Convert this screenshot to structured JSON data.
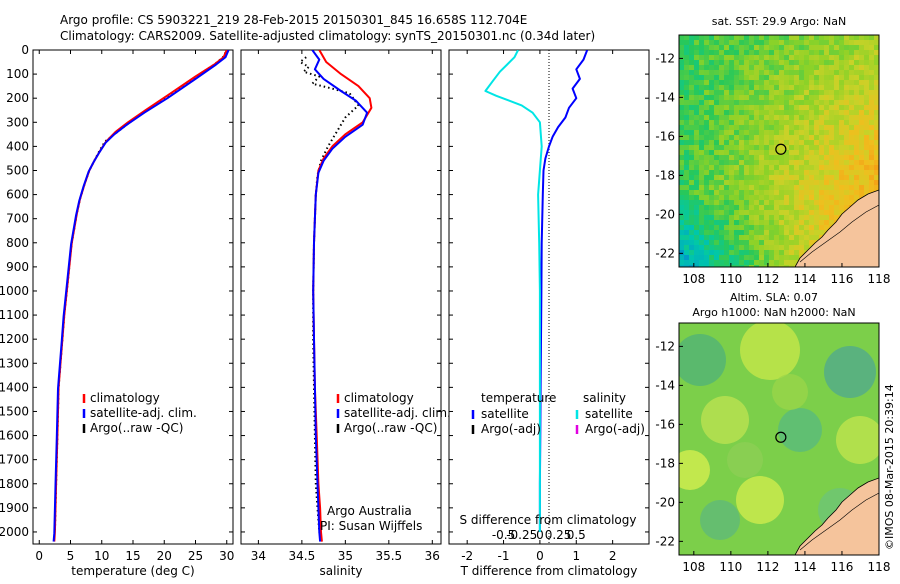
{
  "header": {
    "line1": "Argo profile: CS 5903221_219 28-Feb-2015 20150301_845 16.658S 112.704E",
    "line2": "Climatology: CARS2009. Satellite-adjusted climatology: synTS_20150301.nc (0.34d later)"
  },
  "footer_stamp": "©IMOS 08-Mar-2015 20:39:14",
  "chart_data": [
    {
      "type": "line",
      "name": "temperature-profile",
      "xlabel": "temperature (deg C)",
      "ylabel": "",
      "xlim": [
        -1,
        31
      ],
      "ylim": [
        2050,
        0
      ],
      "xticks": [
        0,
        5,
        10,
        15,
        20,
        25,
        30
      ],
      "yticks": [
        0,
        100,
        200,
        300,
        400,
        500,
        600,
        700,
        800,
        900,
        1000,
        1100,
        1200,
        1300,
        1400,
        1500,
        1600,
        1700,
        1800,
        1900,
        2000
      ],
      "legend": {
        "position": "bottom-center",
        "items": [
          {
            "label": "climatology",
            "color": "#ff0000"
          },
          {
            "label": "satellite-adj. clim.",
            "color": "#0000ff"
          },
          {
            "label": "Argo(..raw -QC)",
            "color": "#000000"
          }
        ]
      },
      "series": [
        {
          "id": "argo",
          "color": "#000000",
          "dotted": true,
          "x": [
            29.8,
            29.4,
            28.0,
            24.5,
            20.0,
            16.5,
            14.0,
            12.0,
            10.5,
            9.6,
            8.8,
            8.0,
            7.2,
            6.5,
            6.0,
            5.6,
            5.2,
            4.8,
            4.4,
            4.0,
            3.7,
            3.4,
            3.1,
            2.9,
            2.7,
            2.5
          ],
          "y": [
            10,
            30,
            60,
            120,
            200,
            260,
            310,
            350,
            380,
            420,
            460,
            500,
            560,
            620,
            680,
            740,
            800,
            900,
            1000,
            1100,
            1200,
            1300,
            1400,
            1600,
            1800,
            2000
          ]
        },
        {
          "id": "climatology",
          "color": "#ff0000",
          "x": [
            30.0,
            29.5,
            28.0,
            25.0,
            21.0,
            17.0,
            14.2,
            12.2,
            10.7,
            9.7,
            8.8,
            8.0,
            7.2,
            6.5,
            6.0,
            5.6,
            5.2,
            4.8,
            4.4,
            4.0,
            3.7,
            3.4,
            3.1,
            2.9,
            2.7,
            2.5,
            2.4
          ],
          "y": [
            0,
            30,
            60,
            110,
            180,
            250,
            300,
            340,
            380,
            420,
            460,
            500,
            560,
            620,
            680,
            740,
            800,
            900,
            1000,
            1100,
            1200,
            1300,
            1400,
            1600,
            1800,
            2000,
            2040
          ]
        },
        {
          "id": "satellite-adj",
          "color": "#0000ff",
          "x": [
            30.3,
            29.8,
            28.3,
            25.0,
            20.5,
            16.8,
            14.0,
            12.0,
            10.6,
            9.6,
            8.7,
            7.9,
            7.1,
            6.4,
            5.9,
            5.5,
            5.1,
            4.7,
            4.3,
            3.9,
            3.6,
            3.3,
            3.0,
            2.8,
            2.6,
            2.4,
            2.3
          ],
          "y": [
            0,
            30,
            60,
            120,
            200,
            260,
            310,
            350,
            385,
            425,
            465,
            505,
            565,
            625,
            685,
            745,
            805,
            905,
            1005,
            1105,
            1205,
            1305,
            1405,
            1605,
            1805,
            2005,
            2040
          ]
        }
      ]
    },
    {
      "type": "line",
      "name": "salinity-profile",
      "xlabel": "salinity",
      "xlim": [
        33.8,
        36.1
      ],
      "ylim": [
        2050,
        0
      ],
      "xticks": [
        34,
        34.5,
        35,
        35.5,
        36
      ],
      "xtick_labels": [
        "34",
        "34.5",
        "35",
        "35.5",
        "36"
      ],
      "legend": {
        "position": "bottom-right",
        "items": [
          {
            "label": "climatology",
            "color": "#ff0000"
          },
          {
            "label": "satellite-adj. clim.",
            "color": "#0000ff"
          },
          {
            "label": "Argo(..raw -QC)",
            "color": "#000000"
          }
        ]
      },
      "annotations": [
        "Argo Australia",
        "PI: Susan Wijffels"
      ],
      "series": [
        {
          "id": "argo",
          "color": "#000000",
          "dotted": true,
          "x": [
            34.55,
            34.48,
            34.58,
            34.52,
            34.7,
            34.62,
            34.85,
            35.05,
            35.15,
            35.0,
            34.9,
            34.8,
            34.72,
            34.68,
            34.66,
            34.65,
            34.64,
            34.63,
            34.63,
            34.64,
            34.65,
            34.66,
            34.68,
            34.7,
            34.71
          ],
          "y": [
            30,
            50,
            70,
            90,
            110,
            140,
            160,
            180,
            230,
            280,
            340,
            400,
            460,
            520,
            600,
            700,
            800,
            1000,
            1200,
            1400,
            1600,
            1800,
            1900,
            2000,
            2020
          ]
        },
        {
          "id": "climatology",
          "color": "#ff0000",
          "x": [
            34.7,
            34.78,
            34.95,
            35.15,
            35.28,
            35.3,
            35.2,
            35.0,
            34.85,
            34.75,
            34.69,
            34.66,
            34.65,
            34.64,
            34.63,
            34.64,
            34.65,
            34.67,
            34.69,
            34.71,
            34.72,
            34.73
          ],
          "y": [
            0,
            50,
            100,
            150,
            200,
            240,
            300,
            350,
            400,
            450,
            500,
            600,
            700,
            800,
            1000,
            1200,
            1400,
            1600,
            1800,
            1900,
            2000,
            2040
          ]
        },
        {
          "id": "satellite-adj",
          "color": "#0000ff",
          "x": [
            34.62,
            34.7,
            34.65,
            34.75,
            34.95,
            35.12,
            35.25,
            35.2,
            35.0,
            34.85,
            34.75,
            34.69,
            34.66,
            34.65,
            34.64,
            34.63,
            34.64,
            34.65,
            34.66,
            34.68,
            34.7,
            34.71
          ],
          "y": [
            0,
            40,
            80,
            120,
            170,
            210,
            260,
            310,
            360,
            410,
            460,
            510,
            600,
            700,
            800,
            1000,
            1200,
            1400,
            1600,
            1800,
            2000,
            2040
          ]
        }
      ]
    },
    {
      "type": "line",
      "name": "difference-profile",
      "xlabel": "T difference from climatology",
      "top_axis_label": "S difference from climatology",
      "xlim": [
        -2.5,
        3.0
      ],
      "ylim": [
        2050,
        0
      ],
      "xticks": [
        -2,
        -1,
        0,
        1,
        2
      ],
      "top_ticks": [
        -0.5,
        -0.25,
        0,
        0.25,
        0.5
      ],
      "top_tick_labels": [
        "-0.5",
        "-0.25",
        "0",
        "0.25",
        "0.5"
      ],
      "legend": {
        "position": "bottom-center",
        "groups": [
          {
            "title": "temperature",
            "items": [
              {
                "label": "satellite",
                "color": "#0000ff"
              },
              {
                "label": "Argo(-adj)",
                "color": "#000000"
              }
            ]
          },
          {
            "title": "salinity",
            "items": [
              {
                "label": "satellite",
                "color": "#00e5e5"
              },
              {
                "label": "Argo(-adj)",
                "color": "#e000e0"
              }
            ]
          }
        ]
      },
      "series": [
        {
          "id": "temp-satellite",
          "color": "#0000ff",
          "x": [
            1.3,
            1.2,
            1.0,
            1.1,
            0.9,
            1.0,
            0.8,
            0.7,
            0.5,
            0.35,
            0.25,
            0.15,
            0.1,
            0.08,
            0.05,
            0.04,
            0.03,
            0.02,
            0.01,
            0.0,
            0.0
          ],
          "y": [
            0,
            40,
            80,
            120,
            160,
            200,
            240,
            280,
            320,
            360,
            400,
            450,
            500,
            600,
            800,
            1000,
            1200,
            1400,
            1600,
            1800,
            2000
          ]
        },
        {
          "id": "sal-satellite",
          "color": "#00e5e5",
          "x": [
            -0.6,
            -0.7,
            -0.9,
            -1.1,
            -1.3,
            -1.5,
            -1.2,
            -0.5,
            -0.2,
            0.0,
            0.05,
            0.0,
            -0.05,
            -0.02,
            0.0,
            0.0,
            0.0,
            0.0,
            0.0
          ],
          "y": [
            0,
            30,
            60,
            90,
            130,
            170,
            190,
            230,
            260,
            300,
            400,
            500,
            600,
            800,
            1000,
            1200,
            1500,
            1800,
            2000
          ]
        }
      ]
    },
    {
      "type": "heatmap",
      "name": "sst-map",
      "title": "sat. SST: 29.9  Argo: NaN",
      "xlim": [
        107.2,
        118
      ],
      "ylim": [
        -22.7,
        -10.8
      ],
      "xticks": [
        108,
        110,
        112,
        114,
        116,
        118
      ],
      "yticks": [
        -12,
        -14,
        -16,
        -18,
        -20,
        -22
      ],
      "marker": {
        "lon": 112.7,
        "lat": -16.66
      }
    },
    {
      "type": "heatmap",
      "name": "sla-map",
      "title_line1": "Altim. SLA: 0.07",
      "title_line2": "Argo h1000: NaN  h2000: NaN",
      "xlim": [
        107.2,
        118
      ],
      "ylim": [
        -22.7,
        -10.8
      ],
      "xticks": [
        108,
        110,
        112,
        114,
        116,
        118
      ],
      "yticks": [
        -12,
        -14,
        -16,
        -18,
        -20,
        -22
      ],
      "marker": {
        "lon": 112.7,
        "lat": -16.66
      }
    }
  ]
}
